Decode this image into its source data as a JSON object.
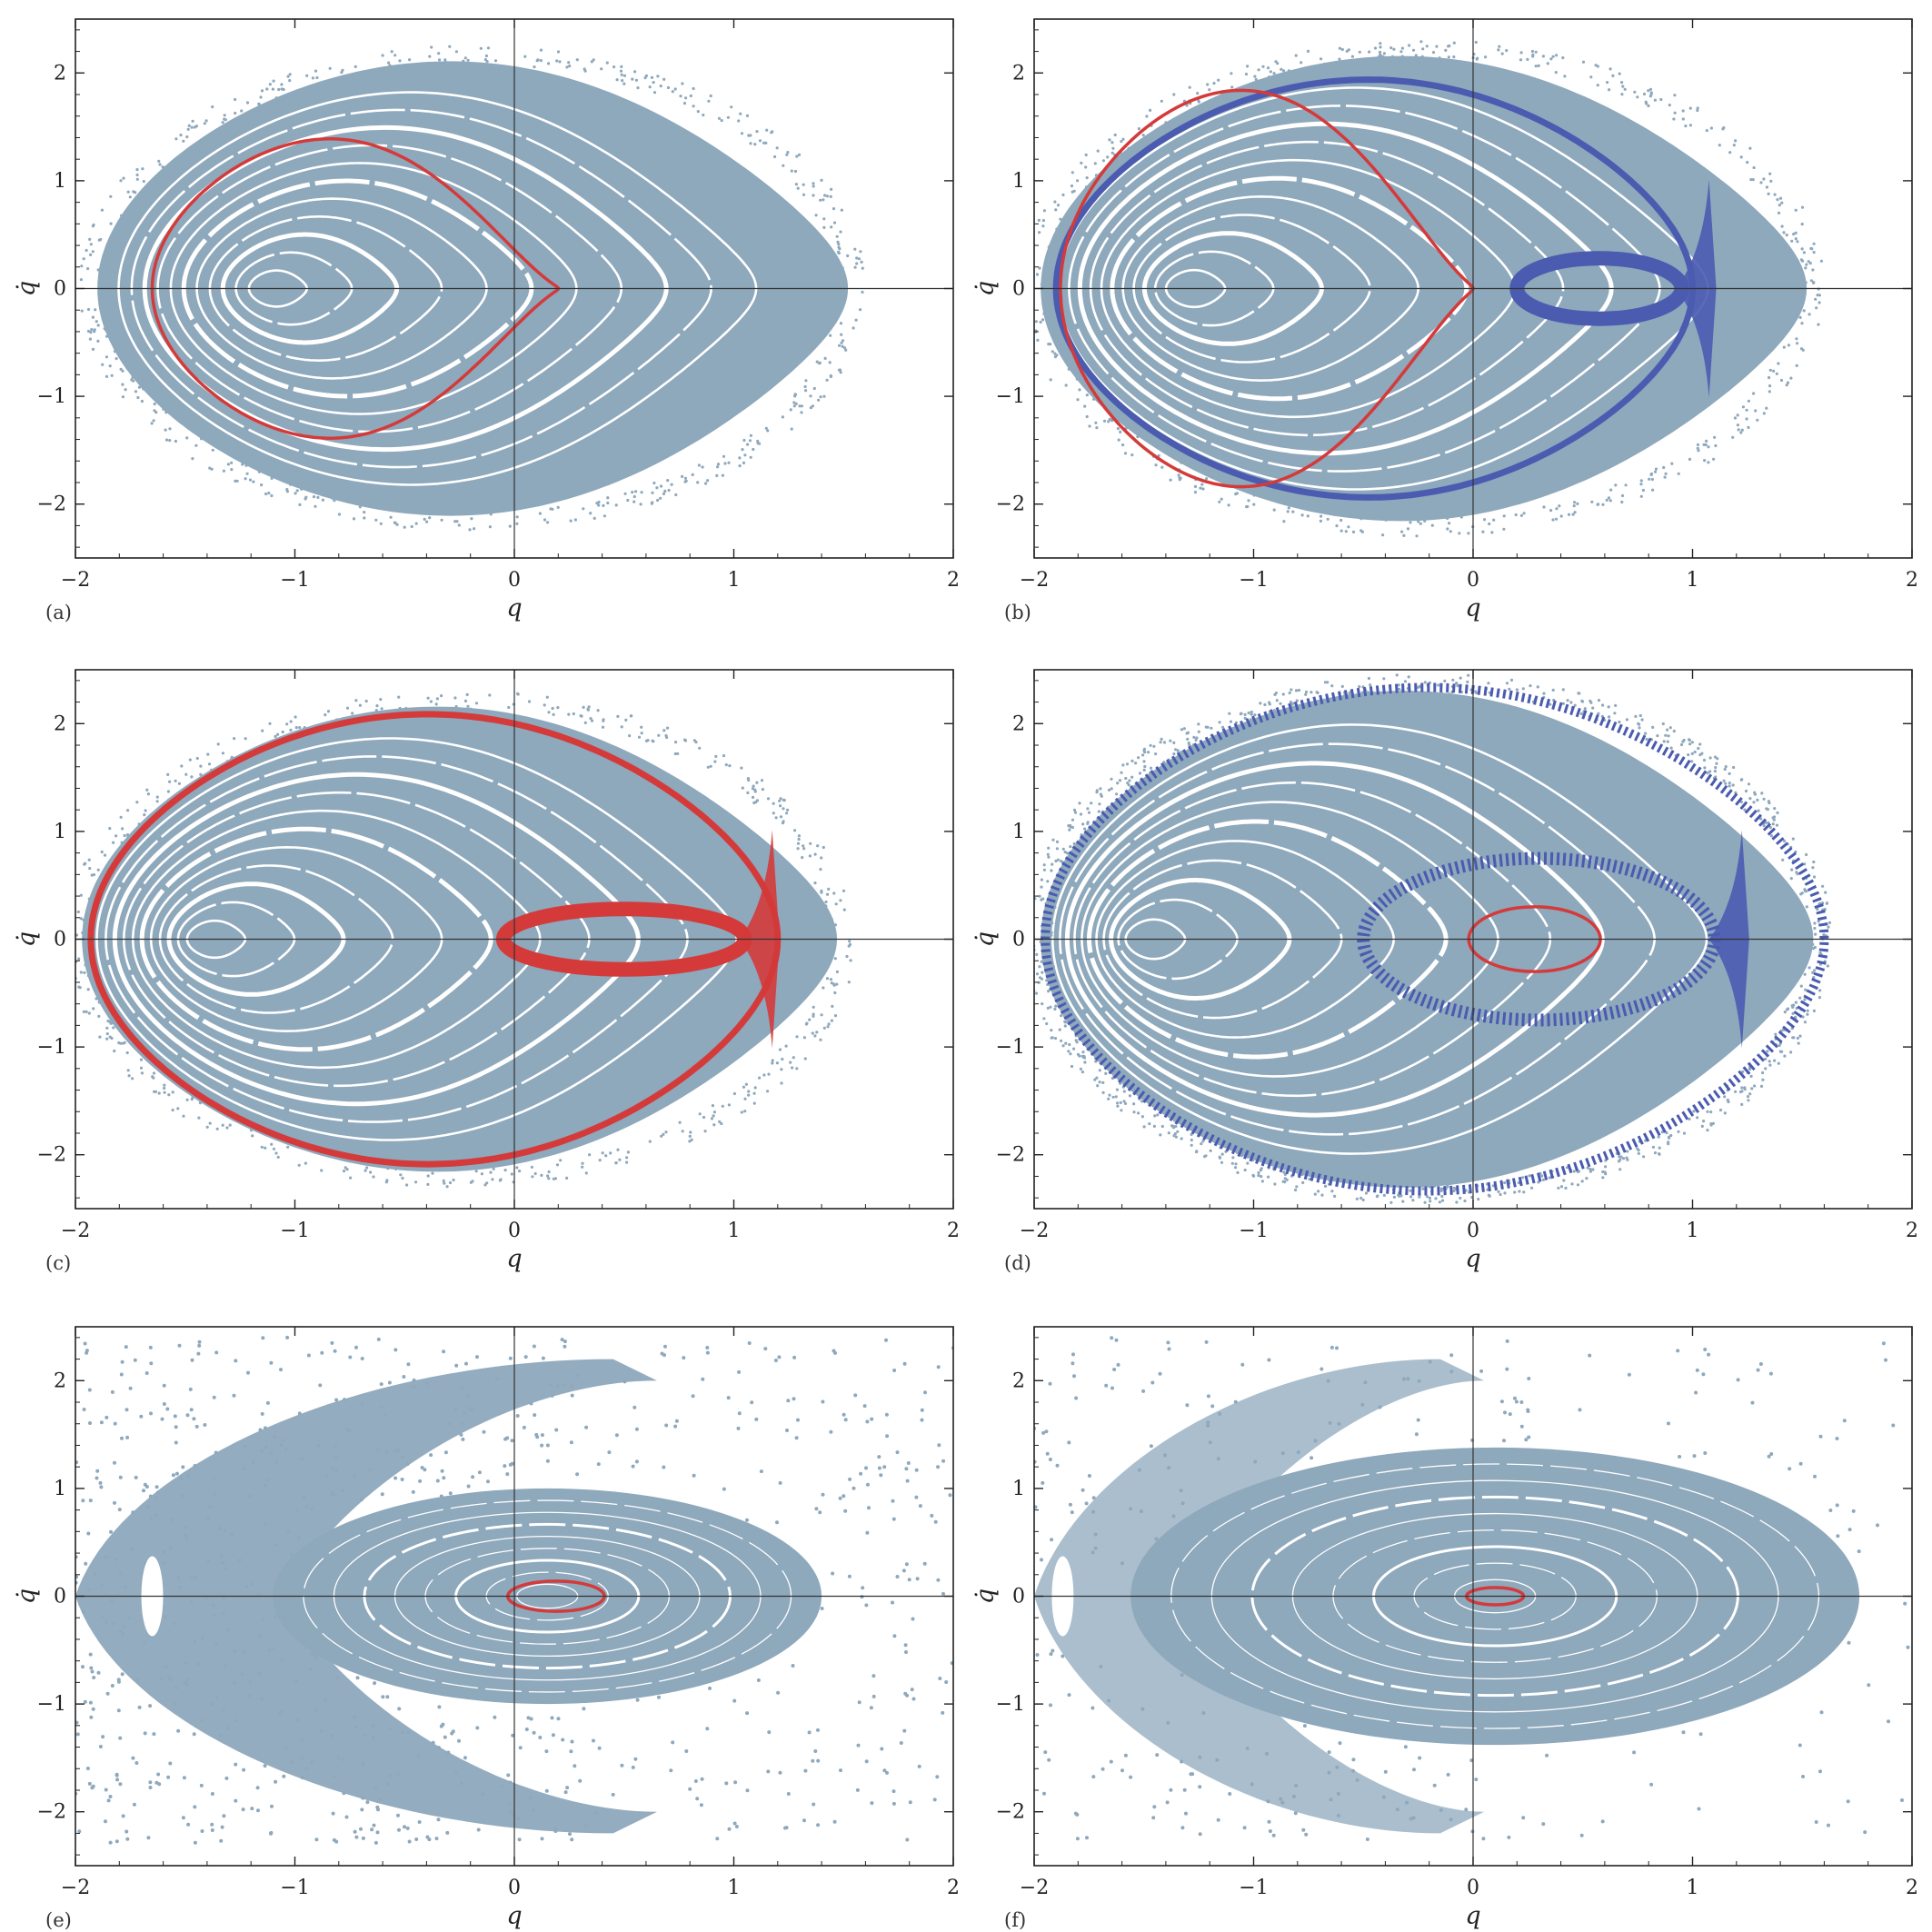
{
  "figure": {
    "panel_labels": [
      "(a)",
      "(b)",
      "(c)",
      "(d)",
      "(e)",
      "(f)"
    ],
    "colors": {
      "background_orbits": "#8ea8bc",
      "highlight_red": "#d43a3a",
      "highlight_blue": "#4a5bb0",
      "frame": "#222222",
      "zero_lines": "#333333"
    }
  },
  "chart_data": [
    {
      "panel": "(a)",
      "type": "scatter",
      "xlabel": "q",
      "ylabel": "q̇",
      "xlim": [
        -2,
        2
      ],
      "ylim": [
        -2.5,
        2.5
      ],
      "xticks": [
        -2,
        -1,
        0,
        1,
        2
      ],
      "yticks": [
        -2,
        -1,
        0,
        1,
        2
      ],
      "xtick_labels": [
        "−2",
        "−1",
        "0",
        "1",
        "2"
      ],
      "ytick_labels": [
        "−2",
        "−1",
        "0",
        "1",
        "2"
      ],
      "grid": false,
      "background_region": {
        "x_range": [
          -1.9,
          1.52
        ],
        "qdot_max": 2.15,
        "fixed_point": [
          -1.15,
          0
        ]
      },
      "highlighted": [
        {
          "color": "red",
          "shape": "closed_curve",
          "x_extent": [
            -1.65,
            0.2
          ],
          "qdot_max": 1.45
        }
      ]
    },
    {
      "panel": "(b)",
      "type": "scatter",
      "xlabel": "q",
      "ylabel": "q̇",
      "xlim": [
        -2,
        2
      ],
      "ylim": [
        -2.5,
        2.5
      ],
      "xticks": [
        -2,
        -1,
        0,
        1,
        2
      ],
      "yticks": [
        -2,
        -1,
        0,
        1,
        2
      ],
      "xtick_labels": [
        "−2",
        "−1",
        "0",
        "1",
        "2"
      ],
      "ytick_labels": [
        "−2",
        "−1",
        "0",
        "1",
        "2"
      ],
      "grid": false,
      "background_region": {
        "x_range": [
          -1.97,
          1.52
        ],
        "qdot_max": 2.2,
        "fixed_point": [
          -1.35,
          0
        ]
      },
      "highlighted": [
        {
          "color": "blue",
          "shape": "separatrix_layer",
          "x_extent": [
            -1.9,
            1.0
          ],
          "qdot_max": 1.95,
          "inner_loop_x": [
            0.2,
            0.95
          ]
        },
        {
          "color": "red",
          "shape": "closed_curve",
          "x_extent": [
            -1.88,
            0.0
          ],
          "qdot_max": 1.92
        }
      ]
    },
    {
      "panel": "(c)",
      "type": "scatter",
      "xlabel": "q",
      "ylabel": "q̇",
      "xlim": [
        -2,
        2
      ],
      "ylim": [
        -2.5,
        2.5
      ],
      "xticks": [
        -2,
        -1,
        0,
        1,
        2
      ],
      "yticks": [
        -2,
        -1,
        0,
        1,
        2
      ],
      "xtick_labels": [
        "−2",
        "−1",
        "0",
        "1",
        "2"
      ],
      "ytick_labels": [
        "−2",
        "−1",
        "0",
        "1",
        "2"
      ],
      "grid": false,
      "background_region": {
        "x_range": [
          -1.97,
          1.47
        ],
        "qdot_max": 2.2,
        "fixed_point": [
          -1.45,
          0
        ]
      },
      "highlighted": [
        {
          "color": "red",
          "shape": "separatrix_layer",
          "x_extent": [
            -1.93,
            1.2
          ],
          "qdot_max": 2.1,
          "inner_loop_x": [
            -0.05,
            1.05
          ]
        }
      ]
    },
    {
      "panel": "(d)",
      "type": "scatter",
      "xlabel": "q",
      "ylabel": "q̇",
      "xlim": [
        -2,
        2
      ],
      "ylim": [
        -2.5,
        2.5
      ],
      "xticks": [
        -2,
        -1,
        0,
        1,
        2
      ],
      "yticks": [
        -2,
        -1,
        0,
        1,
        2
      ],
      "xtick_labels": [
        "−2",
        "−1",
        "0",
        "1",
        "2"
      ],
      "ytick_labels": [
        "−2",
        "−1",
        "0",
        "1",
        "2"
      ],
      "grid": false,
      "background_region": {
        "x_range": [
          -1.97,
          1.55
        ],
        "qdot_max": 2.35,
        "fixed_point": [
          -1.55,
          0
        ]
      },
      "highlighted": [
        {
          "color": "blue",
          "shape": "chaotic_layer",
          "x_extent": [
            -1.95,
            1.6
          ],
          "qdot_max": 2.35,
          "inner_loop_x": [
            -0.5,
            1.1
          ]
        },
        {
          "color": "red",
          "shape": "ellipse",
          "center": [
            0.28,
            0
          ],
          "x_radius": 0.3,
          "qdot_radius": 0.3
        }
      ]
    },
    {
      "panel": "(e)",
      "type": "scatter",
      "xlabel": "q",
      "ylabel": "q̇",
      "xlim": [
        -2,
        2
      ],
      "ylim": [
        -2.5,
        2.5
      ],
      "xticks": [
        -2,
        -1,
        0,
        1,
        2
      ],
      "yticks": [
        -2,
        -1,
        0,
        1,
        2
      ],
      "xtick_labels": [
        "−2",
        "−1",
        "0",
        "1",
        "2"
      ],
      "ytick_labels": [
        "−2",
        "−1",
        "0",
        "1",
        "2"
      ],
      "grid": false,
      "background_region": {
        "island_center": [
          0.15,
          0
        ],
        "island_x_radius": 1.25,
        "island_qdot_radius": 1.0,
        "crescent_x_range": [
          -2.0,
          0.1
        ],
        "fixed_point": [
          -1.65,
          0
        ]
      },
      "highlighted": [
        {
          "color": "red",
          "shape": "ellipse",
          "center": [
            0.19,
            0
          ],
          "x_radius": 0.22,
          "qdot_radius": 0.14
        }
      ]
    },
    {
      "panel": "(f)",
      "type": "scatter",
      "xlabel": "q",
      "ylabel": "q̇",
      "xlim": [
        -2,
        2
      ],
      "ylim": [
        -2.5,
        2.5
      ],
      "xticks": [
        -2,
        -1,
        0,
        1,
        2
      ],
      "yticks": [
        -2,
        -1,
        0,
        1,
        2
      ],
      "xtick_labels": [
        "−2",
        "−1",
        "0",
        "1",
        "2"
      ],
      "ytick_labels": [
        "−2",
        "−1",
        "0",
        "1",
        "2"
      ],
      "grid": false,
      "background_region": {
        "island_center": [
          0.1,
          0
        ],
        "island_x_radius": 1.66,
        "island_qdot_radius": 1.38,
        "crescent_x_range": [
          -2.0,
          -0.5
        ],
        "fixed_point": [
          -1.87,
          0
        ]
      },
      "highlighted": [
        {
          "color": "red",
          "shape": "ellipse",
          "center": [
            0.1,
            0
          ],
          "x_radius": 0.13,
          "qdot_radius": 0.08
        }
      ]
    }
  ]
}
